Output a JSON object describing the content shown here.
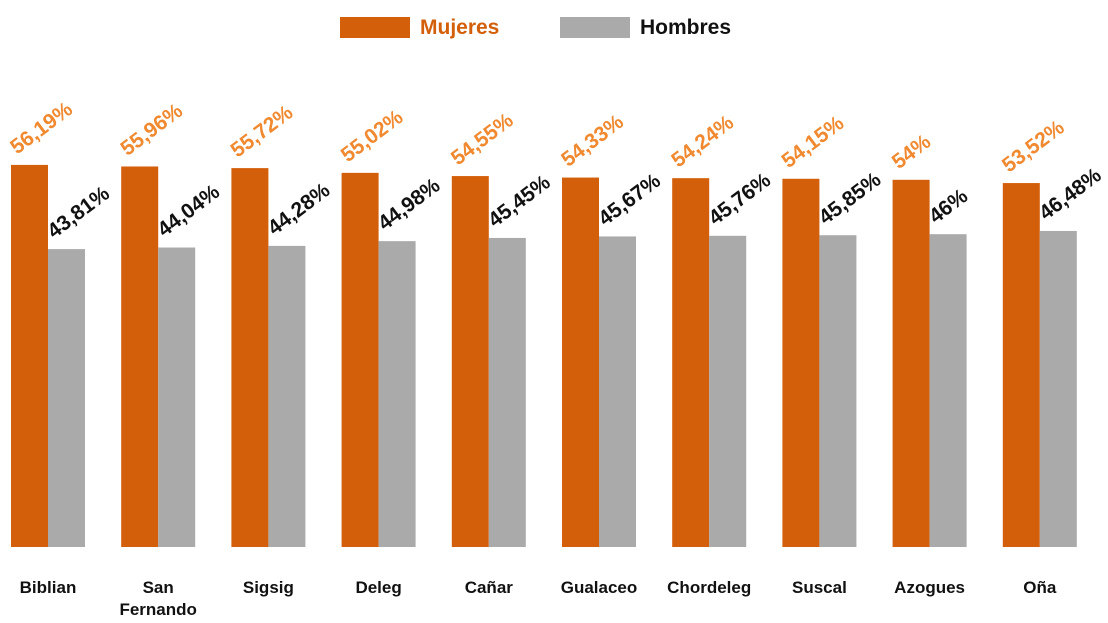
{
  "chart_data": {
    "type": "grouped_bar",
    "categories": [
      "Biblian",
      "San Fernando",
      "Sigsig",
      "Deleg",
      "Cañar",
      "Gualaceo",
      "Chordeleg",
      "Suscal",
      "Azogues",
      "Oña"
    ],
    "series": [
      {
        "name": "Mujeres",
        "color": "#d35f0a",
        "label_color": "#f0892f",
        "values": [
          56.19,
          55.96,
          55.72,
          55.02,
          54.55,
          54.33,
          54.24,
          54.15,
          54,
          53.52
        ],
        "value_labels": [
          "56,19%",
          "55,96%",
          "55,72%",
          "55,02%",
          "54,55%",
          "54,33%",
          "54,24%",
          "54,15%",
          "54%",
          "53,52%"
        ]
      },
      {
        "name": "Hombres",
        "color": "#aaaaaa",
        "label_color": "#111111",
        "values": [
          43.81,
          44.04,
          44.28,
          44.98,
          45.45,
          45.67,
          45.76,
          45.85,
          46,
          46.48
        ],
        "value_labels": [
          "43,81%",
          "44,04%",
          "44,28%",
          "44,98%",
          "45,45%",
          "45,67%",
          "45,76%",
          "45,85%",
          "46%",
          "46,48%"
        ]
      }
    ],
    "ylim": [
      0,
      80
    ]
  }
}
